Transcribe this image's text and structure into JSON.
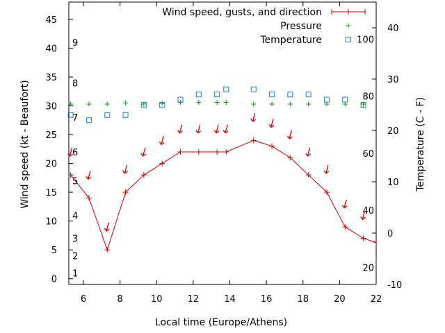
{
  "chart_data": {
    "type": "line",
    "xlabel": "Local time (Europe/Athens)",
    "ylabel_left": "Wind speed (kt - Beaufort)",
    "ylabel_right": "Temperature (C - F)",
    "x_range": [
      5.2,
      22
    ],
    "y_left_range": [
      -1,
      48
    ],
    "y_right_range": [
      -10,
      45
    ],
    "x_ticks": [
      6,
      8,
      10,
      12,
      14,
      16,
      18,
      20,
      22
    ],
    "y_left_ticks": [
      0,
      5,
      10,
      15,
      20,
      25,
      30,
      35,
      40,
      45
    ],
    "y_right_ticks": [
      -10,
      0,
      10,
      20,
      30,
      40
    ],
    "beaufort_labels": [
      {
        "label": "1",
        "kt": 1
      },
      {
        "label": "2",
        "kt": 4
      },
      {
        "label": "3",
        "kt": 7
      },
      {
        "label": "4",
        "kt": 11
      },
      {
        "label": "5",
        "kt": 17
      },
      {
        "label": "6",
        "kt": 22
      },
      {
        "label": "7",
        "kt": 28
      },
      {
        "label": "8",
        "kt": 34
      },
      {
        "label": "9",
        "kt": 41
      }
    ],
    "fahrenheit_labels": [
      {
        "label": "20",
        "f": 20
      },
      {
        "label": "40",
        "f": 40
      },
      {
        "label": "60",
        "f": 60
      },
      {
        "label": "80",
        "f": 80
      },
      {
        "label": "100",
        "f": 100
      }
    ],
    "legend": [
      {
        "label": "Wind speed, gusts, and direction",
        "color": "#cc0000",
        "symbol": "line-plus"
      },
      {
        "label": "Pressure",
        "color": "#00a000",
        "symbol": "plus"
      },
      {
        "label": "Temperature",
        "color": "#1a7fc0",
        "symbol": "square"
      }
    ],
    "legend_position": "top-right",
    "series": [
      {
        "name": "Wind speed, gusts, and direction",
        "axis": "left",
        "color": "#cc0000",
        "x": [
          5.3,
          6.3,
          7.3,
          8.3,
          9.3,
          10.3,
          11.3,
          12.3,
          13.3,
          13.8,
          15.3,
          16.3,
          17.3,
          18.3,
          19.3,
          20.3,
          21.3,
          22
        ],
        "y": [
          18,
          14,
          5,
          15,
          18,
          20,
          22,
          22,
          22,
          22,
          24,
          23,
          21,
          18,
          15,
          9,
          7,
          6.3
        ]
      },
      {
        "name": "Pressure",
        "axis": "left",
        "color": "#00a000",
        "x": [
          5.3,
          6.3,
          7.3,
          8.3,
          9.3,
          10.3,
          11.3,
          12.3,
          13.3,
          13.8,
          15.3,
          16.3,
          17.3,
          18.3,
          19.3,
          20.3,
          21.3
        ],
        "y": [
          30.3,
          30.3,
          30.3,
          30.5,
          30.3,
          30.4,
          30.6,
          30.6,
          30.6,
          30.6,
          30.3,
          30.3,
          30.3,
          30.3,
          30.3,
          30.3,
          30.3
        ]
      },
      {
        "name": "Temperature",
        "axis": "right",
        "color": "#1a7fc0",
        "x": [
          5.3,
          6.3,
          7.3,
          8.3,
          9.3,
          10.3,
          11.3,
          12.3,
          13.3,
          13.8,
          15.3,
          16.3,
          17.3,
          18.3,
          19.3,
          20.3,
          21.3
        ],
        "y": [
          23,
          22,
          23,
          23,
          25,
          25,
          26,
          27,
          27,
          28,
          28,
          27,
          27,
          27,
          26,
          26,
          25
        ]
      },
      {
        "name": "Wind direction arrows",
        "axis": "left",
        "color": "#cc0000",
        "x": [
          5.3,
          6.3,
          7.3,
          8.3,
          9.3,
          10.3,
          11.3,
          12.3,
          13.3,
          13.8,
          15.3,
          16.3,
          17.3,
          18.3,
          19.3,
          20.3,
          21.3
        ],
        "y": [
          22,
          18,
          9,
          19,
          22,
          24,
          26,
          26,
          26,
          26,
          28,
          27,
          25,
          22,
          19,
          13,
          11
        ]
      }
    ]
  }
}
